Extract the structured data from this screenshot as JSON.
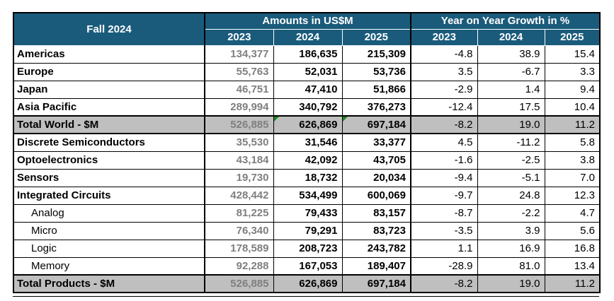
{
  "table": {
    "title": "Fall 2024",
    "group_headers": {
      "amounts": "Amounts in US$M",
      "growth": "Year on Year Growth in %"
    },
    "year_headers": {
      "amounts": [
        "2023",
        "2024",
        "2025"
      ],
      "growth": [
        "2023",
        "2024",
        "2025"
      ]
    },
    "rows": [
      {
        "label": "Americas",
        "style": "bold",
        "amounts": [
          "134,377",
          "186,635",
          "215,309"
        ],
        "growth": [
          "-4.8",
          "38.9",
          "15.4"
        ],
        "flagged_amount_cols": []
      },
      {
        "label": "Europe",
        "style": "bold",
        "amounts": [
          "55,763",
          "52,031",
          "53,736"
        ],
        "growth": [
          "3.5",
          "-6.7",
          "3.3"
        ],
        "flagged_amount_cols": []
      },
      {
        "label": "Japan",
        "style": "bold",
        "amounts": [
          "46,751",
          "47,410",
          "51,866"
        ],
        "growth": [
          "-2.9",
          "1.4",
          "9.4"
        ],
        "flagged_amount_cols": []
      },
      {
        "label": "Asia Pacific",
        "style": "bold",
        "amounts": [
          "289,994",
          "340,792",
          "376,273"
        ],
        "growth": [
          "-12.4",
          "17.5",
          "10.4"
        ],
        "flagged_amount_cols": []
      },
      {
        "label": "Total World - $M",
        "style": "total",
        "amounts": [
          "526,885",
          "626,869",
          "697,184"
        ],
        "growth": [
          "-8.2",
          "19.0",
          "11.2"
        ],
        "flagged_amount_cols": [
          1,
          2
        ]
      },
      {
        "label": "Discrete Semiconductors",
        "style": "bold",
        "amounts": [
          "35,530",
          "31,546",
          "33,377"
        ],
        "growth": [
          "4.5",
          "-11.2",
          "5.8"
        ],
        "flagged_amount_cols": []
      },
      {
        "label": "Optoelectronics",
        "style": "bold",
        "amounts": [
          "43,184",
          "42,092",
          "43,705"
        ],
        "growth": [
          "-1.6",
          "-2.5",
          "3.8"
        ],
        "flagged_amount_cols": []
      },
      {
        "label": "Sensors",
        "style": "bold",
        "amounts": [
          "19,730",
          "18,732",
          "20,034"
        ],
        "growth": [
          "-9.4",
          "-5.1",
          "7.0"
        ],
        "flagged_amount_cols": []
      },
      {
        "label": "Integrated Circuits",
        "style": "bold",
        "amounts": [
          "428,442",
          "534,499",
          "600,069"
        ],
        "growth": [
          "-9.7",
          "24.8",
          "12.3"
        ],
        "flagged_amount_cols": []
      },
      {
        "label": "Analog",
        "style": "sub",
        "amounts": [
          "81,225",
          "79,433",
          "83,157"
        ],
        "growth": [
          "-8.7",
          "-2.2",
          "4.7"
        ],
        "flagged_amount_cols": []
      },
      {
        "label": "Micro",
        "style": "sub",
        "amounts": [
          "76,340",
          "79,291",
          "83,723"
        ],
        "growth": [
          "-3.5",
          "3.9",
          "5.6"
        ],
        "flagged_amount_cols": []
      },
      {
        "label": "Logic",
        "style": "sub",
        "amounts": [
          "178,589",
          "208,723",
          "243,782"
        ],
        "growth": [
          "1.1",
          "16.9",
          "16.8"
        ],
        "flagged_amount_cols": []
      },
      {
        "label": "Memory",
        "style": "sub",
        "amounts": [
          "92,288",
          "167,053",
          "189,407"
        ],
        "growth": [
          "-28.9",
          "81.0",
          "13.4"
        ],
        "flagged_amount_cols": []
      },
      {
        "label": "Total Products - $M",
        "style": "total",
        "amounts": [
          "526,885",
          "626,869",
          "697,184"
        ],
        "growth": [
          "-8.2",
          "19.0",
          "11.2"
        ],
        "flagged_amount_cols": []
      }
    ]
  },
  "colors": {
    "header_bg": "#1A5B7B",
    "header_text": "#FFFFFF",
    "total_row_bg": "#BFBFBF",
    "muted_amount_text": "#7F7F7F",
    "flag_indicator_green": "#1F8A1F",
    "border": "#000000"
  },
  "icons": {
    "flag_indicator": "error-indicator-triangle-icon"
  }
}
